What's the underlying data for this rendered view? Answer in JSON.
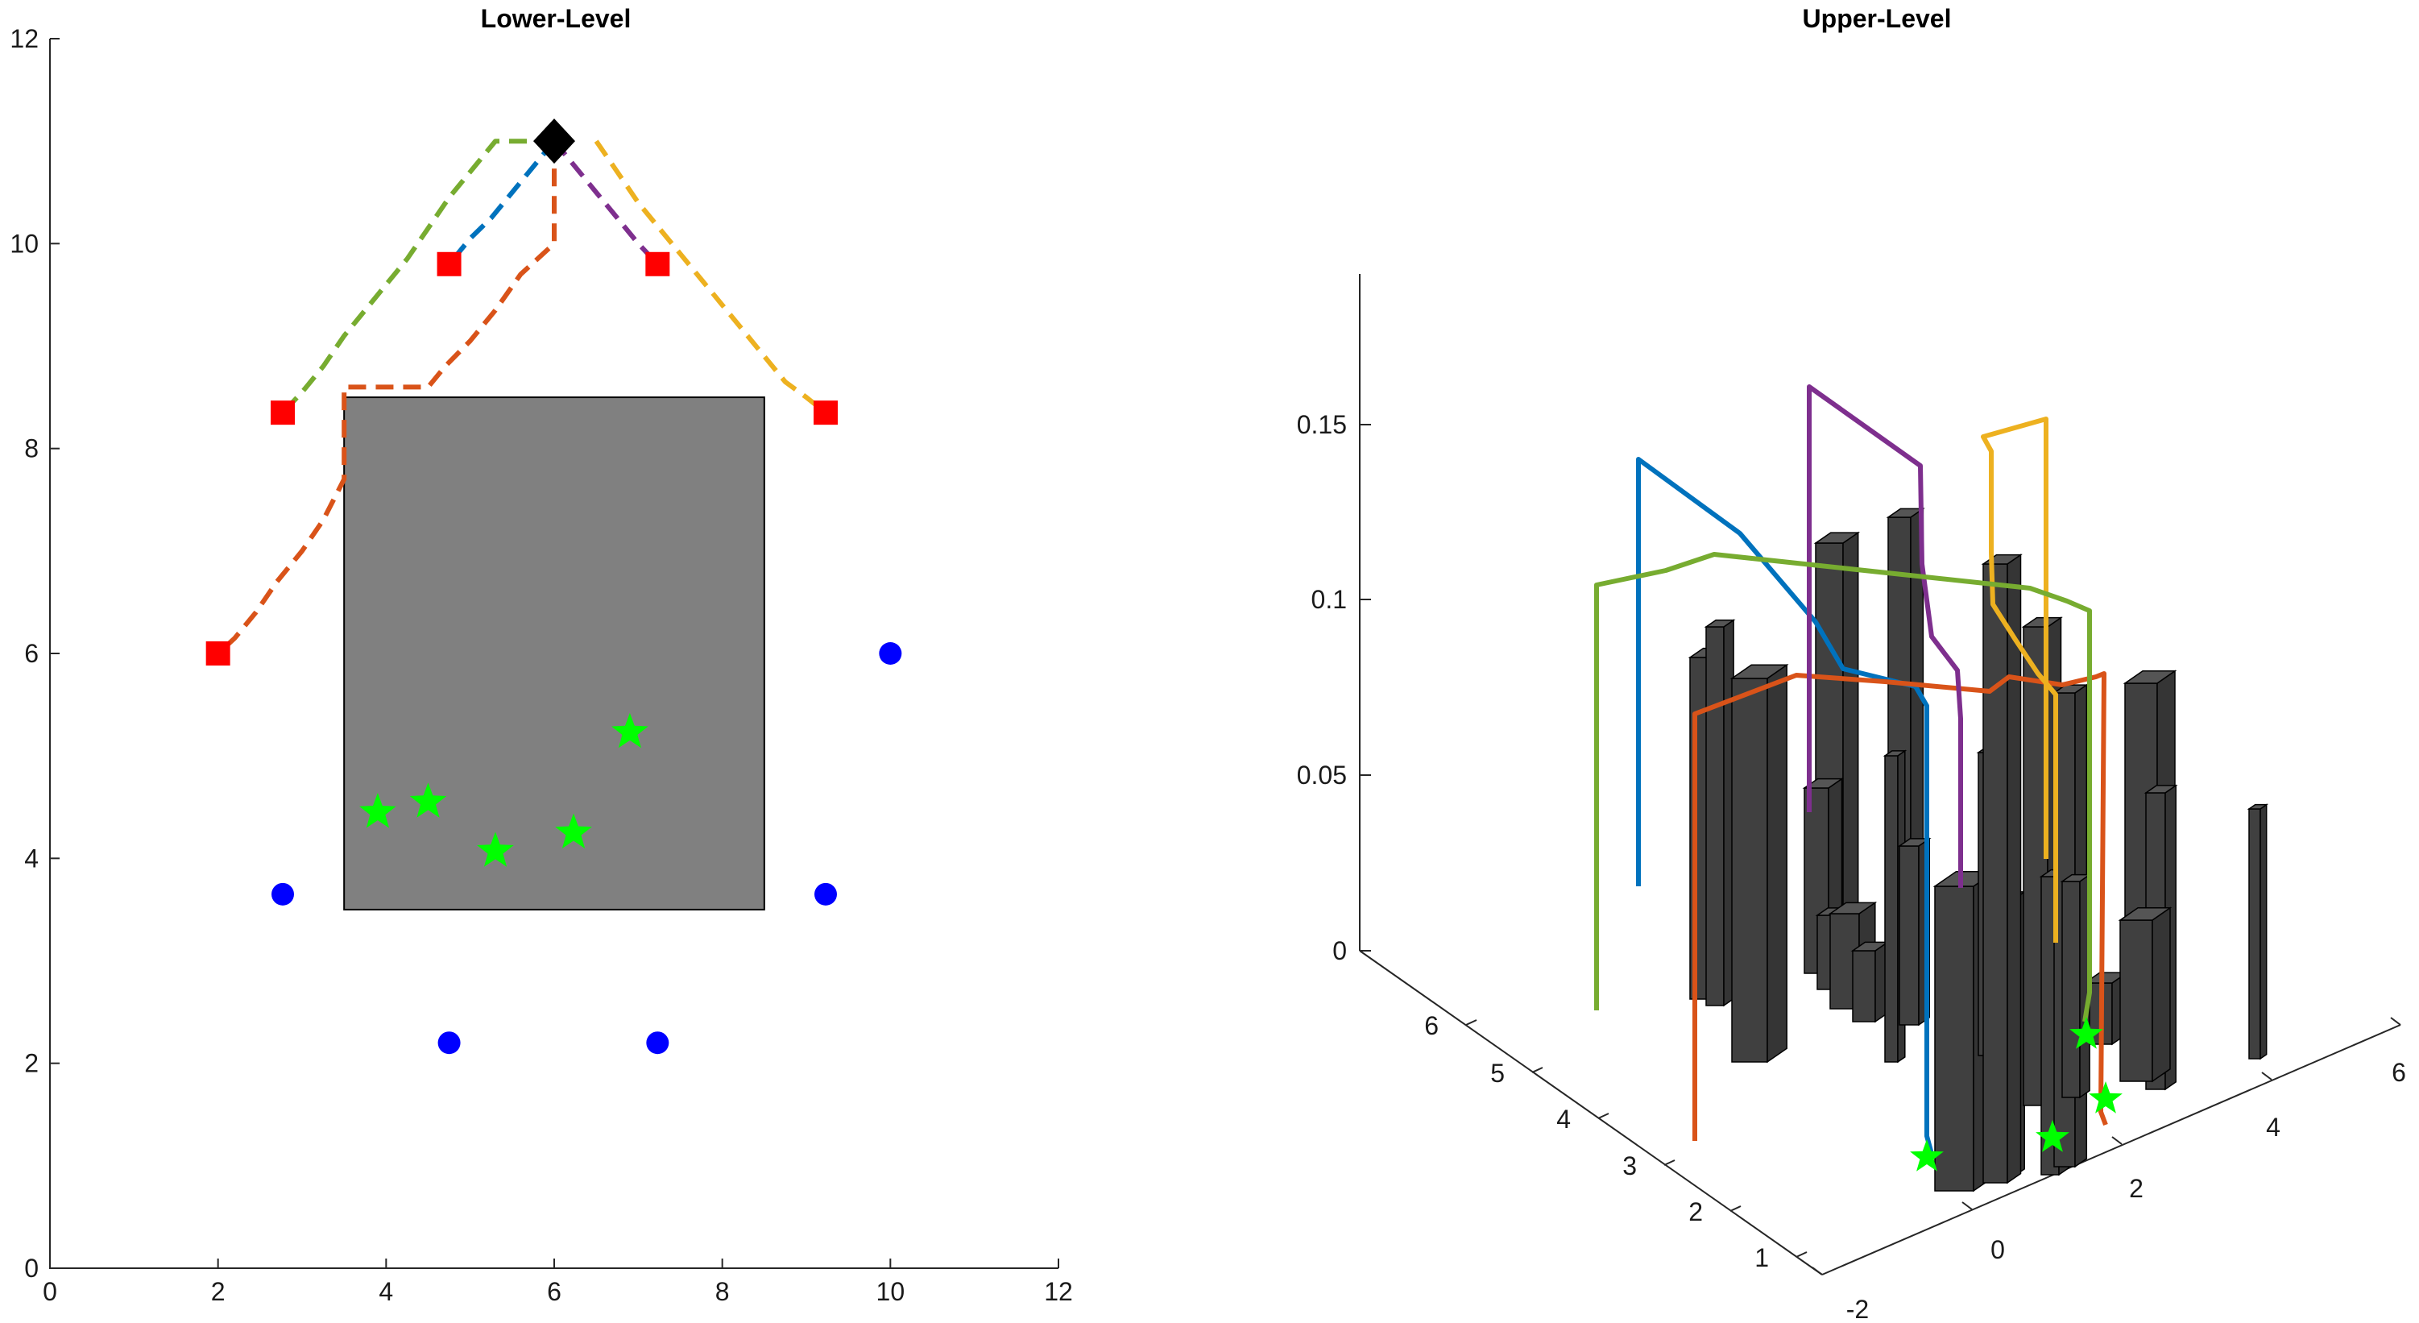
{
  "chart_data": [
    {
      "type": "scatter",
      "title": "Lower-Level",
      "xlim": [
        0,
        12
      ],
      "ylim": [
        0,
        12
      ],
      "xticks": [
        "0",
        "2",
        "4",
        "6",
        "8",
        "10",
        "12"
      ],
      "yticks": [
        "0",
        "2",
        "4",
        "6",
        "8",
        "10",
        "12"
      ],
      "grid": false,
      "obstacle": {
        "x0": 3.5,
        "x1": 8.5,
        "y0": 3.5,
        "y1": 8.5,
        "color": "#808080"
      },
      "depot": {
        "x": 6,
        "y": 11,
        "color": "#000000"
      },
      "waypoints": {
        "color": "#ff0000",
        "points": [
          [
            2,
            6
          ],
          [
            2.77,
            8.35
          ],
          [
            4.75,
            9.8
          ],
          [
            7.23,
            9.8
          ],
          [
            9.23,
            8.35
          ]
        ]
      },
      "blue_points": {
        "color": "#0000ff",
        "points": [
          [
            2.77,
            3.65
          ],
          [
            4.75,
            2.2
          ],
          [
            7.23,
            2.2
          ],
          [
            9.23,
            3.65
          ],
          [
            10,
            6
          ]
        ]
      },
      "green_stars": {
        "color": "#00ff00",
        "points": [
          [
            3.9,
            4.45
          ],
          [
            4.5,
            4.55
          ],
          [
            5.3,
            4.07
          ],
          [
            6.23,
            4.25
          ],
          [
            6.9,
            5.23
          ]
        ]
      },
      "paths": [
        {
          "color": "#0072bd",
          "points": [
            [
              6,
              11
            ],
            [
              5.75,
              10.75
            ],
            [
              5.5,
              10.5
            ],
            [
              5.25,
              10.25
            ],
            [
              5,
              10.05
            ],
            [
              4.75,
              9.8
            ]
          ]
        },
        {
          "color": "#d95319",
          "points": [
            [
              6,
              11
            ],
            [
              6,
              10
            ],
            [
              5.6,
              9.7
            ],
            [
              5.3,
              9.35
            ],
            [
              5,
              9.05
            ],
            [
              4.7,
              8.8
            ],
            [
              4.5,
              8.6
            ],
            [
              3.5,
              8.6
            ],
            [
              3.5,
              7.7
            ],
            [
              3.25,
              7.3
            ],
            [
              3.0,
              7.0
            ],
            [
              2.7,
              6.7
            ],
            [
              2.45,
              6.4
            ],
            [
              2.2,
              6.15
            ],
            [
              2,
              6
            ]
          ]
        },
        {
          "color": "#edb120",
          "points": [
            [
              6.5,
              11
            ],
            [
              6.75,
              10.7
            ],
            [
              7.0,
              10.4
            ],
            [
              7.25,
              10.15
            ],
            [
              7.5,
              9.9
            ],
            [
              7.75,
              9.65
            ],
            [
              8.0,
              9.4
            ],
            [
              8.25,
              9.15
            ],
            [
              8.5,
              8.9
            ],
            [
              8.75,
              8.65
            ],
            [
              9.0,
              8.5
            ],
            [
              9.23,
              8.35
            ]
          ]
        },
        {
          "color": "#7e2f8e",
          "points": [
            [
              6,
              11
            ],
            [
              6.25,
              10.75
            ],
            [
              6.5,
              10.5
            ],
            [
              6.75,
              10.25
            ],
            [
              7.0,
              10.0
            ],
            [
              7.23,
              9.8
            ]
          ]
        },
        {
          "color": "#77ac30",
          "points": [
            [
              6,
              11
            ],
            [
              5.3,
              11
            ],
            [
              5.05,
              10.75
            ],
            [
              4.75,
              10.45
            ],
            [
              4.5,
              10.15
            ],
            [
              4.25,
              9.85
            ],
            [
              4.0,
              9.6
            ],
            [
              3.75,
              9.35
            ],
            [
              3.5,
              9.1
            ],
            [
              3.25,
              8.8
            ],
            [
              3.0,
              8.55
            ],
            [
              2.77,
              8.35
            ]
          ]
        }
      ]
    },
    {
      "type": "3d-bar-line",
      "title": "Upper-Level",
      "zticks": [
        "0",
        "0.05",
        "0.1",
        "0.15"
      ],
      "yticks_depth": [
        "1",
        "2",
        "3",
        "4",
        "5",
        "6"
      ],
      "xticks_width": [
        "-2",
        "0",
        "2",
        "4",
        "6"
      ],
      "bar_color": "#404040",
      "star_color": "#00ff00",
      "line_colors": [
        "#0072bd",
        "#d95319",
        "#edb120",
        "#7e2f8e",
        "#77ac30"
      ]
    }
  ]
}
